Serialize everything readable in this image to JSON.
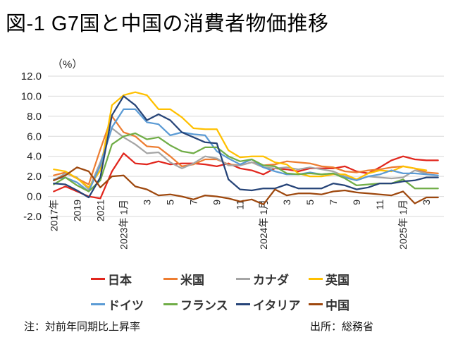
{
  "title": "図-1 G7国と中国の消費者物価推移",
  "notes": {
    "left": "注：対前年同期比上昇率",
    "right": "出所：総務省"
  },
  "chart_data": {
    "type": "line",
    "title": "図-1 G7国と中国の消費者物価推移",
    "ylabel": "（%）",
    "xlabel": "",
    "ylim": [
      -2.0,
      12.0
    ],
    "y_ticks": [
      12.0,
      10.0,
      8.0,
      6.0,
      4.0,
      2.0,
      0.0,
      -2.0
    ],
    "grid": true,
    "legend_position": "bottom",
    "gridline_color": "#d9d9d9",
    "categories": [
      "2017年",
      "2018年",
      "2019年",
      "2020年",
      "2021年",
      "2022年",
      "2023年1月",
      "2023年2月",
      "2023年3月",
      "2023年4月",
      "2023年5月",
      "2023年6月",
      "2023年7月",
      "2023年8月",
      "2023年9月",
      "2023年10月",
      "2023年11月",
      "2023年12月",
      "2024年1月",
      "2024年2月",
      "2024年3月",
      "2024年4月",
      "2024年5月",
      "2024年6月",
      "2024年7月",
      "2024年8月",
      "2024年9月",
      "2024年10月",
      "2024年11月",
      "2024年12月",
      "2025年1月",
      "2025年2月",
      "2025年3月",
      "2025年4月"
    ],
    "x_tick_labels": [
      {
        "i": 0,
        "label": "2017年"
      },
      {
        "i": 2,
        "label": "2019"
      },
      {
        "i": 4,
        "label": "2021"
      },
      {
        "i": 6,
        "label": "2023年 1月"
      },
      {
        "i": 8,
        "label": "3"
      },
      {
        "i": 10,
        "label": "5"
      },
      {
        "i": 12,
        "label": "7"
      },
      {
        "i": 14,
        "label": "9"
      },
      {
        "i": 16,
        "label": "11"
      },
      {
        "i": 18,
        "label": "2024年 1月"
      },
      {
        "i": 20,
        "label": "3"
      },
      {
        "i": 22,
        "label": "5"
      },
      {
        "i": 24,
        "label": "7"
      },
      {
        "i": 26,
        "label": "9"
      },
      {
        "i": 28,
        "label": "11"
      },
      {
        "i": 30,
        "label": "2025年 1月"
      },
      {
        "i": 32,
        "label": "3"
      }
    ],
    "series": [
      {
        "key": "japan",
        "name": "日本",
        "color": "#e1261d",
        "values": [
          0.5,
          1.0,
          0.5,
          0.0,
          -0.2,
          2.5,
          4.3,
          3.3,
          3.2,
          3.5,
          3.2,
          3.3,
          3.3,
          3.2,
          3.0,
          3.3,
          2.8,
          2.6,
          2.2,
          2.8,
          2.7,
          2.5,
          2.8,
          2.8,
          2.8,
          3.0,
          2.5,
          2.3,
          2.9,
          3.6,
          4.0,
          3.7,
          3.6,
          3.6
        ]
      },
      {
        "key": "us",
        "name": "米国",
        "color": "#ED7D31",
        "values": [
          2.1,
          2.4,
          1.8,
          1.2,
          4.7,
          8.0,
          6.4,
          6.0,
          5.0,
          4.9,
          4.0,
          3.0,
          3.2,
          3.7,
          3.7,
          3.2,
          3.1,
          3.4,
          3.1,
          3.2,
          3.5,
          3.4,
          3.3,
          3.0,
          2.9,
          2.5,
          2.4,
          2.6,
          2.7,
          2.9,
          3.0,
          2.8,
          2.4,
          2.3
        ]
      },
      {
        "key": "canada",
        "name": "カナダ",
        "color": "#A5A5A5",
        "values": [
          1.6,
          2.3,
          1.9,
          0.7,
          3.4,
          6.8,
          5.9,
          5.2,
          4.3,
          4.4,
          3.4,
          2.8,
          3.3,
          4.0,
          3.8,
          3.1,
          3.1,
          3.4,
          2.9,
          2.8,
          2.9,
          2.7,
          2.9,
          2.7,
          2.5,
          2.0,
          1.6,
          2.0,
          1.9,
          1.8,
          1.9,
          2.6,
          2.3,
          null
        ]
      },
      {
        "key": "uk",
        "name": "英国",
        "color": "#FFC000",
        "values": [
          2.7,
          2.5,
          1.8,
          0.9,
          2.6,
          9.1,
          10.1,
          10.4,
          10.1,
          8.7,
          8.7,
          7.9,
          6.8,
          6.7,
          6.7,
          4.6,
          3.9,
          4.0,
          4.0,
          3.4,
          3.2,
          2.3,
          2.0,
          2.0,
          2.2,
          2.2,
          1.7,
          2.3,
          2.6,
          2.5,
          3.0,
          2.8,
          2.6,
          null
        ]
      },
      {
        "key": "germany",
        "name": "ドイツ",
        "color": "#5B9BD5",
        "values": [
          1.7,
          1.9,
          1.4,
          0.5,
          3.1,
          6.9,
          8.7,
          8.7,
          7.4,
          7.2,
          6.1,
          6.4,
          6.2,
          6.1,
          4.5,
          3.8,
          3.2,
          3.7,
          2.9,
          2.5,
          2.2,
          2.2,
          2.4,
          2.2,
          2.3,
          1.9,
          1.6,
          2.0,
          2.2,
          2.6,
          2.3,
          2.3,
          2.2,
          2.1
        ]
      },
      {
        "key": "france",
        "name": "フランス",
        "color": "#70AD47",
        "values": [
          1.2,
          1.9,
          1.1,
          0.5,
          1.6,
          5.2,
          6.0,
          6.3,
          5.7,
          5.9,
          5.1,
          4.5,
          4.3,
          4.9,
          4.9,
          4.0,
          3.5,
          3.7,
          3.1,
          3.0,
          2.3,
          2.2,
          2.3,
          2.2,
          2.3,
          1.8,
          1.1,
          1.2,
          1.3,
          1.3,
          1.7,
          0.8,
          0.8,
          0.8
        ]
      },
      {
        "key": "italy",
        "name": "イタリア",
        "color": "#264478",
        "values": [
          1.3,
          1.2,
          0.6,
          -0.1,
          1.9,
          8.1,
          10.0,
          9.1,
          7.6,
          8.2,
          7.6,
          6.4,
          5.9,
          5.4,
          5.3,
          1.7,
          0.7,
          0.6,
          0.8,
          0.8,
          1.2,
          0.8,
          0.8,
          0.8,
          1.3,
          1.1,
          0.7,
          0.9,
          1.3,
          1.3,
          1.5,
          1.6,
          1.9,
          1.9
        ]
      },
      {
        "key": "china",
        "name": "中国",
        "color": "#9E480E",
        "values": [
          1.6,
          2.1,
          2.9,
          2.5,
          0.9,
          2.0,
          2.1,
          1.0,
          0.7,
          0.1,
          0.2,
          0.0,
          -0.3,
          0.1,
          0.0,
          -0.2,
          -0.5,
          -0.3,
          -0.8,
          0.7,
          0.1,
          0.3,
          0.3,
          0.2,
          0.5,
          0.6,
          0.4,
          0.3,
          0.2,
          0.1,
          0.5,
          -0.7,
          -0.1,
          -0.1
        ]
      }
    ]
  }
}
